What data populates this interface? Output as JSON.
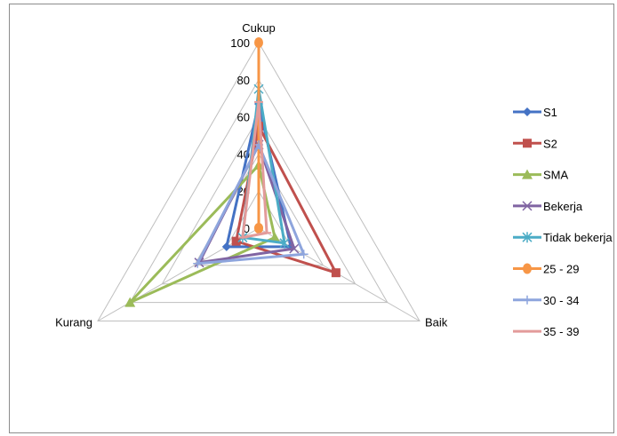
{
  "chart_data": {
    "type": "radar",
    "axes": [
      "Cukup",
      "Baik",
      "Kurang"
    ],
    "rlim": [
      0,
      100
    ],
    "ticks": [
      0,
      20,
      40,
      60,
      80,
      100
    ],
    "tick_labels": [
      "0",
      "20",
      "40",
      "60",
      "80",
      "100"
    ],
    "grid": true,
    "legend_position": "right",
    "series": [
      {
        "name": "S1",
        "values": [
          67,
          20,
          20
        ],
        "color": "#4472C4",
        "marker": "diamond"
      },
      {
        "name": "S2",
        "values": [
          55,
          48,
          14
        ],
        "color": "#C0504D",
        "marker": "square"
      },
      {
        "name": "SMA",
        "values": [
          34,
          10,
          80
        ],
        "color": "#9BBB59",
        "marker": "triangle"
      },
      {
        "name": "Bekerja",
        "values": [
          45,
          22,
          37
        ],
        "color": "#8064A2",
        "marker": "x"
      },
      {
        "name": "Tidak bekerja",
        "values": [
          75,
          16,
          10
        ],
        "color": "#4BACC6",
        "marker": "star"
      },
      {
        "name": "25 - 29",
        "values": [
          100,
          0,
          0
        ],
        "color": "#F79646",
        "marker": "circle"
      },
      {
        "name": "30 - 34",
        "values": [
          45,
          28,
          38
        ],
        "color": "#8EA5DD",
        "marker": "plus"
      },
      {
        "name": "35 - 39",
        "values": [
          68,
          5,
          10
        ],
        "color": "#E39B9A",
        "marker": "dash"
      }
    ]
  }
}
